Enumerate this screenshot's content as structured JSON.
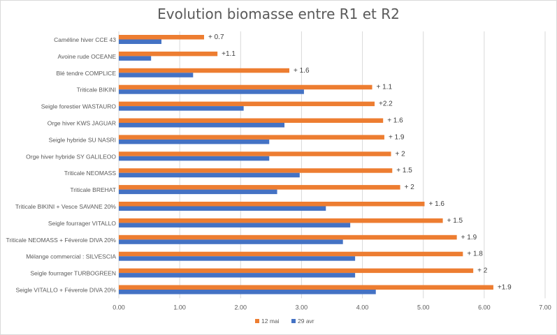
{
  "chart_data": {
    "type": "bar",
    "orientation": "horizontal",
    "title": "Evolution biomasse entre R1 et R2",
    "xlim": [
      0,
      7
    ],
    "xticks": [
      "0.00",
      "1.00",
      "2.00",
      "3.00",
      "4.00",
      "5.00",
      "6.00",
      "7.00"
    ],
    "grid": true,
    "legend_position": "bottom",
    "categories": [
      "Caméline hiver CCE 43",
      "Avoine rude OCEANE",
      "Blé tendre COMPLICE",
      "Triticale BIKINI",
      "Seigle forestier WASTAURO",
      "Orge hiver KWS JAGUAR",
      "Seigle hybride SU NASRI",
      "Orge hiver hybride SY GALILEOO",
      "Triticale NEOMASS",
      "Triticale BREHAT",
      "Triticale BIKINI + Vesce SAVANE 20%",
      "Seigle fourrager VITALLO",
      "Triticale NEOMASS + Féverole DIVA 20%",
      "Mélange commercial : SILVESCIA",
      "Seigle fourrager TURBOGREEN",
      "Seigle VITALLO + Féverole DIVA 20%"
    ],
    "series": [
      {
        "name": "12 mai",
        "color": "#ED7D31",
        "values": [
          1.4,
          1.62,
          2.8,
          4.16,
          4.2,
          4.34,
          4.36,
          4.47,
          4.49,
          4.62,
          5.02,
          5.32,
          5.55,
          5.65,
          5.82,
          6.15
        ],
        "labels": [
          "+ 0.7",
          "+1.1",
          "+ 1.6",
          "+ 1.1",
          "+2.2",
          "+ 1.6",
          "+ 1.9",
          "+ 2",
          "+ 1.5",
          "+ 2",
          "+ 1.6",
          "+ 1.5",
          "+ 1.9",
          "+ 1.8",
          "+ 2",
          "+1.9"
        ]
      },
      {
        "name": "29 avr",
        "color": "#4472C4",
        "values": [
          0.7,
          0.53,
          1.22,
          3.04,
          2.05,
          2.72,
          2.47,
          2.47,
          2.97,
          2.6,
          3.4,
          3.8,
          3.68,
          3.88,
          3.88,
          4.22
        ]
      }
    ]
  }
}
